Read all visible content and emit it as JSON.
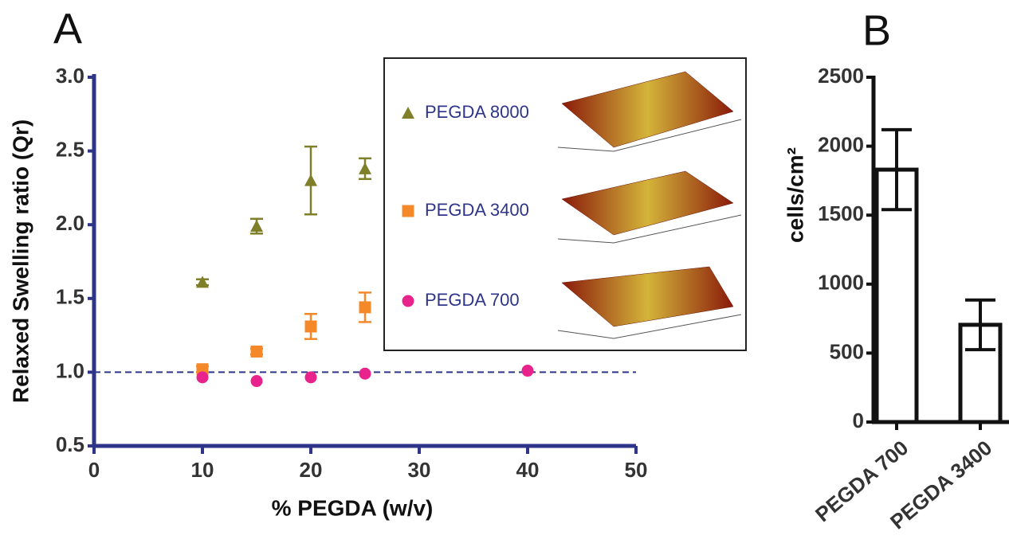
{
  "chart_data": [
    {
      "type": "scatter",
      "panel_label": "A",
      "x_label": "% PEGDA (w/v)",
      "y_label": "Relaxed Swelling ratio (Qr)",
      "xlim": [
        0,
        50
      ],
      "xticks": [
        0,
        10,
        20,
        30,
        40,
        50
      ],
      "ylim": [
        0.5,
        3.0
      ],
      "yticks": [
        0.5,
        {
          "value": 1.0,
          "label": "1.0"
        },
        1.5,
        {
          "value": 2.0,
          "label": "2.0"
        },
        2.5,
        {
          "value": 3.0,
          "label": "3.0"
        }
      ],
      "hline": 1.0,
      "axis_color": "#2e3589",
      "series": [
        {
          "name": "PEGDA 8000",
          "color": "#7f7f2a",
          "marker": "triangle",
          "x": [
            10,
            15,
            20,
            25
          ],
          "values": [
            1.61,
            1.99,
            2.3,
            2.38
          ],
          "errors": [
            0.02,
            0.05,
            0.23,
            0.07
          ]
        },
        {
          "name": "PEGDA 3400",
          "color": "#f5892a",
          "marker": "square",
          "x": [
            10,
            15,
            20,
            25
          ],
          "values": [
            1.02,
            1.14,
            1.31,
            1.44
          ],
          "errors": [
            0.02,
            0.02,
            0.085,
            0.1
          ]
        },
        {
          "name": "PEGDA 700",
          "color": "#e8238c",
          "marker": "circle",
          "x": [
            10,
            15,
            20,
            25,
            40
          ],
          "values": [
            0.965,
            0.94,
            0.965,
            0.99,
            1.01
          ]
        }
      ]
    },
    {
      "type": "bar",
      "panel_label": "B",
      "y_label": "cells/cm²",
      "categories": [
        "PEGDA 700",
        "PEGDA 3400"
      ],
      "values": [
        1830,
        705
      ],
      "errors": [
        290,
        180
      ],
      "color": "#ffffff",
      "axis_color": "#111111",
      "ylim": [
        0,
        2500
      ],
      "yticks": [
        0,
        500,
        1000,
        1500,
        2000,
        2500
      ]
    }
  ]
}
